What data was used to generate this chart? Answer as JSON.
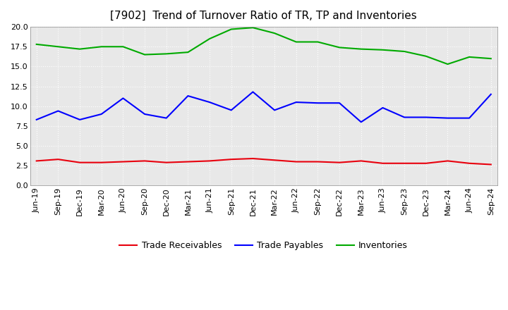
{
  "title": "[7902]  Trend of Turnover Ratio of TR, TP and Inventories",
  "labels": [
    "Jun-19",
    "Sep-19",
    "Dec-19",
    "Mar-20",
    "Jun-20",
    "Sep-20",
    "Dec-20",
    "Mar-21",
    "Jun-21",
    "Sep-21",
    "Dec-21",
    "Mar-22",
    "Jun-22",
    "Sep-22",
    "Dec-22",
    "Mar-23",
    "Jun-23",
    "Sep-23",
    "Dec-23",
    "Mar-24",
    "Jun-24",
    "Sep-24"
  ],
  "trade_receivables": [
    3.1,
    3.3,
    2.9,
    2.9,
    3.0,
    3.1,
    2.9,
    3.0,
    3.1,
    3.3,
    3.4,
    3.2,
    3.0,
    3.0,
    2.9,
    3.1,
    2.8,
    2.8,
    2.8,
    3.1,
    2.8,
    2.65
  ],
  "trade_payables": [
    8.3,
    9.4,
    8.3,
    9.0,
    11.0,
    9.0,
    8.5,
    11.3,
    10.5,
    9.5,
    11.8,
    9.5,
    10.5,
    10.4,
    10.4,
    8.0,
    9.8,
    8.6,
    8.6,
    8.5,
    8.5,
    11.5
  ],
  "inventories": [
    17.8,
    17.5,
    17.2,
    17.5,
    17.5,
    16.5,
    16.6,
    16.8,
    18.5,
    19.7,
    19.9,
    19.2,
    18.1,
    18.1,
    17.4,
    17.2,
    17.1,
    16.9,
    16.3,
    15.3,
    16.2,
    16.0
  ],
  "ylim": [
    0.0,
    20.0
  ],
  "yticks": [
    0.0,
    2.5,
    5.0,
    7.5,
    10.0,
    12.5,
    15.0,
    17.5,
    20.0
  ],
  "color_tr": "#e8000d",
  "color_tp": "#0000ff",
  "color_inv": "#00aa00",
  "legend_labels": [
    "Trade Receivables",
    "Trade Payables",
    "Inventories"
  ],
  "bg_color": "#ffffff",
  "plot_bg_color": "#e8e8e8",
  "grid_color": "#ffffff",
  "title_fontsize": 11,
  "axis_fontsize": 8,
  "legend_fontsize": 9
}
